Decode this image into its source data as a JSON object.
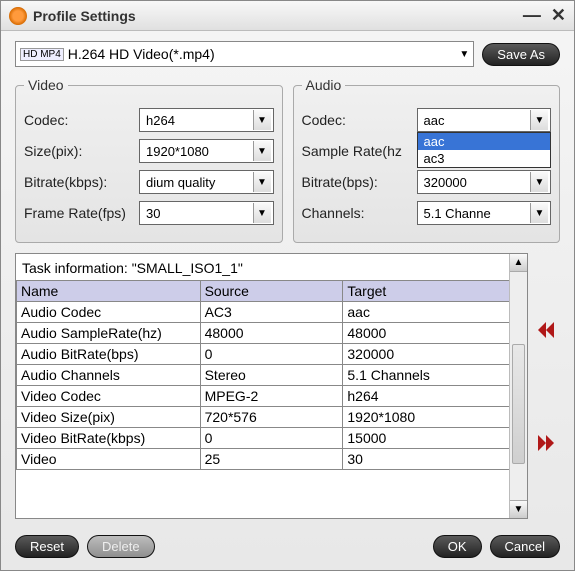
{
  "window": {
    "title": "Profile Settings"
  },
  "profile": {
    "icon_label": "HD MP4",
    "text": "H.264 HD Video(*.mp4)",
    "save_as": "Save As"
  },
  "video": {
    "legend": "Video",
    "codec_label": "Codec:",
    "codec_value": "h264",
    "size_label": "Size(pix):",
    "size_value": "1920*1080",
    "bitrate_label": "Bitrate(kbps):",
    "bitrate_value": "dium quality",
    "framerate_label": "Frame Rate(fps)",
    "framerate_value": "30"
  },
  "audio": {
    "legend": "Audio",
    "codec_label": "Codec:",
    "codec_value": "aac",
    "codec_options": [
      "aac",
      "ac3"
    ],
    "codec_selected_index": 0,
    "samplerate_label": "Sample Rate(hz",
    "samplerate_value": "",
    "bitrate_label": "Bitrate(bps):",
    "bitrate_value": "320000",
    "channels_label": "Channels:",
    "channels_value": "5.1 Channe"
  },
  "task": {
    "title": "Task information: \"SMALL_ISO1_1\"",
    "columns": [
      "Name",
      "Source",
      "Target"
    ],
    "rows": [
      [
        "Audio Codec",
        "AC3",
        "aac"
      ],
      [
        "Audio SampleRate(hz)",
        "48000",
        "48000"
      ],
      [
        "Audio BitRate(bps)",
        "0",
        "320000"
      ],
      [
        "Audio Channels",
        "Stereo",
        "5.1 Channels"
      ],
      [
        "Video Codec",
        "MPEG-2",
        "h264"
      ],
      [
        "Video Size(pix)",
        "720*576",
        "1920*1080"
      ],
      [
        "Video BitRate(kbps)",
        "0",
        "15000"
      ],
      [
        "Video",
        "25",
        "30"
      ]
    ]
  },
  "footer": {
    "reset": "Reset",
    "delete": "Delete",
    "ok": "OK",
    "cancel": "Cancel"
  },
  "colors": {
    "accent_arrow": "#b01818",
    "header_bg": "#cdcde9",
    "dropdown_sel": "#3874d6"
  }
}
